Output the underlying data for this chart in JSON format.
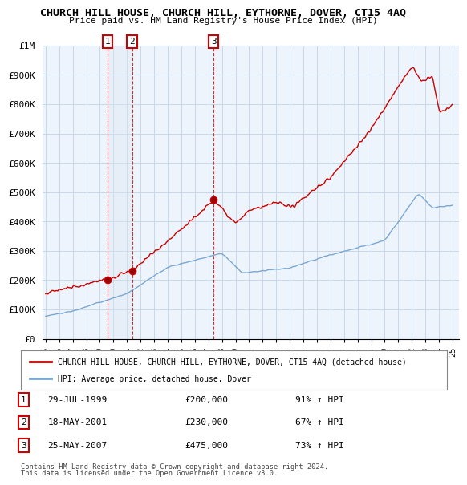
{
  "title": "CHURCH HILL HOUSE, CHURCH HILL, EYTHORNE, DOVER, CT15 4AQ",
  "subtitle": "Price paid vs. HM Land Registry's House Price Index (HPI)",
  "ylabel_ticks": [
    "£0",
    "£100K",
    "£200K",
    "£300K",
    "£400K",
    "£500K",
    "£600K",
    "£700K",
    "£800K",
    "£900K",
    "£1M"
  ],
  "ytick_values": [
    0,
    100000,
    200000,
    300000,
    400000,
    500000,
    600000,
    700000,
    800000,
    900000,
    1000000
  ],
  "xlim": [
    1994.8,
    2025.5
  ],
  "ylim": [
    0,
    1000000
  ],
  "xticks": [
    1995,
    1996,
    1997,
    1998,
    1999,
    2000,
    2001,
    2002,
    2003,
    2004,
    2005,
    2006,
    2007,
    2008,
    2009,
    2010,
    2011,
    2012,
    2013,
    2014,
    2015,
    2016,
    2017,
    2018,
    2019,
    2020,
    2021,
    2022,
    2023,
    2024,
    2025
  ],
  "xtick_labels": [
    "95",
    "96",
    "97",
    "98",
    "99",
    "00",
    "01",
    "02",
    "03",
    "04",
    "05",
    "06",
    "07",
    "08",
    "09",
    "10",
    "11",
    "12",
    "13",
    "14",
    "15",
    "16",
    "17",
    "18",
    "19",
    "20",
    "21",
    "22",
    "23",
    "24",
    "25"
  ],
  "purchases": [
    {
      "label": "1",
      "date": "29-JUL-1999",
      "year": 1999.57,
      "price": 200000,
      "pct": "91%",
      "dir": "↑"
    },
    {
      "label": "2",
      "date": "18-MAY-2001",
      "year": 2001.37,
      "price": 230000,
      "pct": "67%",
      "dir": "↑"
    },
    {
      "label": "3",
      "date": "25-MAY-2007",
      "year": 2007.39,
      "price": 475000,
      "pct": "73%",
      "dir": "↑"
    }
  ],
  "legend_house": "CHURCH HILL HOUSE, CHURCH HILL, EYTHORNE, DOVER, CT15 4AQ (detached house)",
  "legend_hpi": "HPI: Average price, detached house, Dover",
  "footer1": "Contains HM Land Registry data © Crown copyright and database right 2024.",
  "footer2": "This data is licensed under the Open Government Licence v3.0.",
  "house_color": "#cc0000",
  "hpi_color": "#7aa8d4",
  "shade_color": "#d8e8f5",
  "bg_color": "#ffffff",
  "grid_color": "#c8d8e8",
  "box_color": "#cc0000"
}
